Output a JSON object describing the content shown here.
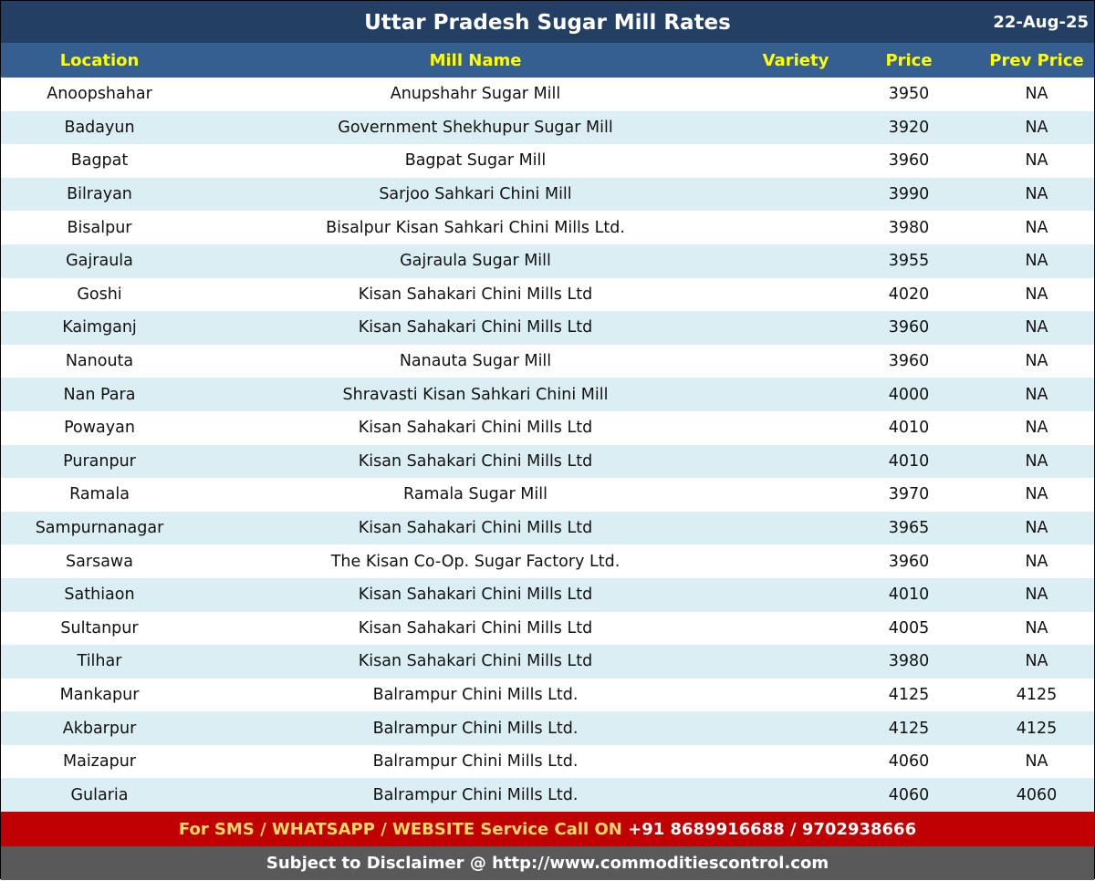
{
  "title": "Uttar Pradesh Sugar Mill Rates",
  "date": "22-Aug-25",
  "columns": [
    "Location",
    "Mill Name",
    "Variety",
    "Price",
    "Prev Price"
  ],
  "rows": [
    [
      "Anoopshahar",
      "Anupshahr Sugar Mill",
      "",
      "3950",
      "NA"
    ],
    [
      "Badayun",
      "Government Shekhupur Sugar Mill",
      "",
      "3920",
      "NA"
    ],
    [
      "Bagpat",
      "Bagpat Sugar Mill",
      "",
      "3960",
      "NA"
    ],
    [
      "Bilrayan",
      "Sarjoo Sahkari Chini Mill",
      "",
      "3990",
      "NA"
    ],
    [
      "Bisalpur",
      "Bisalpur Kisan Sahkari Chini Mills Ltd.",
      "",
      "3980",
      "NA"
    ],
    [
      "Gajraula",
      "Gajraula Sugar Mill",
      "",
      "3955",
      "NA"
    ],
    [
      "Goshi",
      "Kisan Sahakari Chini Mills Ltd",
      "",
      "4020",
      "NA"
    ],
    [
      "Kaimganj",
      "Kisan Sahakari Chini Mills Ltd",
      "",
      "3960",
      "NA"
    ],
    [
      "Nanouta",
      "Nanauta Sugar Mill",
      "",
      "3960",
      "NA"
    ],
    [
      "Nan Para",
      "Shravasti Kisan Sahkari Chini Mill",
      "",
      "4000",
      "NA"
    ],
    [
      "Powayan",
      "Kisan Sahakari Chini Mills Ltd",
      "",
      "4010",
      "NA"
    ],
    [
      "Puranpur",
      "Kisan Sahakari Chini Mills Ltd",
      "",
      "4010",
      "NA"
    ],
    [
      "Ramala",
      "Ramala Sugar Mill",
      "",
      "3970",
      "NA"
    ],
    [
      "Sampurnanagar",
      "Kisan Sahakari Chini Mills Ltd",
      "",
      "3965",
      "NA"
    ],
    [
      "Sarsawa",
      "The Kisan Co-Op. Sugar Factory Ltd.",
      "",
      "3960",
      "NA"
    ],
    [
      "Sathiaon",
      "Kisan Sahakari Chini Mills Ltd",
      "",
      "4010",
      "NA"
    ],
    [
      "Sultanpur",
      "Kisan Sahakari Chini Mills Ltd",
      "",
      "4005",
      "NA"
    ],
    [
      "Tilhar",
      "Kisan Sahakari Chini Mills Ltd",
      "",
      "3980",
      "NA"
    ],
    [
      "Mankapur",
      "Balrampur Chini Mills Ltd.",
      "",
      "4125",
      "4125"
    ],
    [
      "Akbarpur",
      "Balrampur Chini Mills Ltd.",
      "",
      "4125",
      "4125"
    ],
    [
      "Maizapur",
      "Balrampur Chini Mills Ltd.",
      "",
      "4060",
      "NA"
    ],
    [
      "Gularia",
      "Balrampur Chini Mills Ltd.",
      "",
      "4060",
      "4060"
    ]
  ],
  "footer": {
    "service_text": "For SMS / WHATSAPP / WEBSITE Service Call  ON ",
    "phones": " +91 8689916688 / 9702938666",
    "disclaimer": "Subject to Disclaimer @  http://www.commoditiescontrol.com"
  }
}
